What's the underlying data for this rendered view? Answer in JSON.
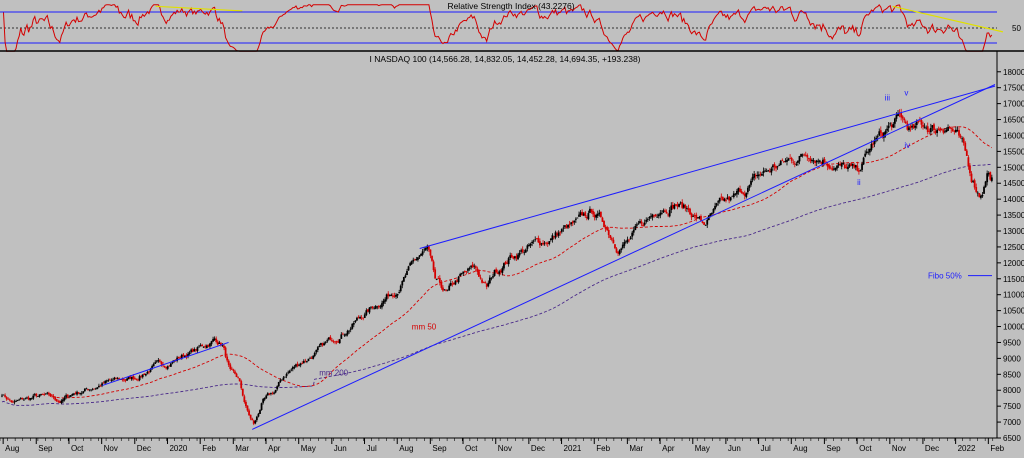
{
  "chart_data": [
    {
      "type": "line",
      "title": "Relative Strength Index (43.2276)",
      "y_ticks": [
        50
      ],
      "reference_levels": [
        30,
        50,
        70
      ],
      "ylim": [
        20,
        80
      ],
      "colors": {
        "line": "#d40000",
        "levels": "#1c1cff",
        "trend": "#e0e000"
      },
      "trendlines": [
        {
          "x": [
            2019.97,
            2020.19
          ],
          "y": [
            78,
            72
          ]
        },
        {
          "x": [
            2021.84,
            2022.12
          ],
          "y": [
            78,
            45
          ]
        }
      ]
    },
    {
      "type": "candlestick",
      "title": "I NASDAQ 100 (14,566.28, 14,832.05, 14,452.28, 14,694.35, +193.238)",
      "x_tick_labels": [
        "Aug",
        "Sep",
        "Oct",
        "Nov",
        "Dec",
        "2020",
        "Feb",
        "Mar",
        "Apr",
        "May",
        "Jun",
        "Jul",
        "Aug",
        "Sep",
        "Oct",
        "Nov",
        "Dec",
        "2021",
        "Feb",
        "Mar",
        "Apr",
        "May",
        "Jun",
        "Jul",
        "Aug",
        "Sep",
        "Oct",
        "Nov",
        "Dec",
        "2022",
        "Feb"
      ],
      "x_tick_positions": [
        2019.583,
        2019.667,
        2019.75,
        2019.833,
        2019.917,
        2020.0,
        2020.083,
        2020.167,
        2020.25,
        2020.333,
        2020.417,
        2020.5,
        2020.583,
        2020.667,
        2020.75,
        2020.833,
        2020.917,
        2021.0,
        2021.083,
        2021.167,
        2021.25,
        2021.333,
        2021.417,
        2021.5,
        2021.583,
        2021.667,
        2021.75,
        2021.833,
        2021.917,
        2022.0,
        2022.083
      ],
      "y_ticks": [
        6500,
        7000,
        7500,
        8000,
        8500,
        9000,
        9500,
        10000,
        10500,
        11000,
        11500,
        12000,
        12500,
        13000,
        13500,
        14000,
        14500,
        15000,
        15500,
        16000,
        16500,
        17000,
        17500,
        18000
      ],
      "xlim": [
        2019.575,
        2022.105
      ],
      "ylim": [
        6500,
        18150
      ],
      "colors": {
        "up": "#000000",
        "down": "#d40000",
        "trend": "#1c1cff",
        "mm50": "#d40000",
        "mm200": "#4a2a8a"
      },
      "anchors": [
        [
          2019.58,
          7900
        ],
        [
          2019.61,
          7600
        ],
        [
          2019.64,
          7700
        ],
        [
          2019.67,
          7800
        ],
        [
          2019.7,
          7760
        ],
        [
          2019.73,
          7650
        ],
        [
          2019.76,
          7900
        ],
        [
          2019.8,
          8050
        ],
        [
          2019.84,
          8230
        ],
        [
          2019.88,
          8300
        ],
        [
          2019.92,
          8400
        ],
        [
          2019.96,
          8700
        ],
        [
          2020.0,
          8850
        ],
        [
          2020.04,
          9100
        ],
        [
          2020.08,
          9300
        ],
        [
          2020.12,
          9600
        ],
        [
          2020.14,
          9450
        ],
        [
          2020.16,
          8500
        ],
        [
          2020.18,
          8300
        ],
        [
          2020.2,
          7400
        ],
        [
          2020.21,
          7100
        ],
        [
          2020.22,
          6900
        ],
        [
          2020.24,
          7600
        ],
        [
          2020.27,
          7900
        ],
        [
          2020.3,
          8500
        ],
        [
          2020.34,
          8900
        ],
        [
          2020.38,
          9200
        ],
        [
          2020.42,
          9600
        ],
        [
          2020.46,
          10000
        ],
        [
          2020.5,
          10400
        ],
        [
          2020.54,
          10800
        ],
        [
          2020.58,
          11200
        ],
        [
          2020.64,
          12200
        ],
        [
          2020.66,
          12400
        ],
        [
          2020.68,
          11300
        ],
        [
          2020.71,
          11000
        ],
        [
          2020.74,
          11500
        ],
        [
          2020.78,
          11800
        ],
        [
          2020.81,
          11200
        ],
        [
          2020.83,
          11700
        ],
        [
          2020.87,
          12200
        ],
        [
          2020.92,
          12500
        ],
        [
          2020.96,
          12700
        ],
        [
          2021.0,
          13000
        ],
        [
          2021.04,
          13200
        ],
        [
          2021.08,
          13600
        ],
        [
          2021.11,
          13200
        ],
        [
          2021.14,
          12600
        ],
        [
          2021.17,
          12700
        ],
        [
          2021.21,
          13200
        ],
        [
          2021.25,
          13800
        ],
        [
          2021.29,
          13900
        ],
        [
          2021.33,
          13600
        ],
        [
          2021.36,
          13200
        ],
        [
          2021.4,
          13700
        ],
        [
          2021.44,
          14000
        ],
        [
          2021.5,
          14700
        ],
        [
          2021.54,
          15000
        ],
        [
          2021.58,
          15200
        ],
        [
          2021.63,
          15500
        ],
        [
          2021.67,
          15300
        ],
        [
          2021.71,
          15000
        ],
        [
          2021.75,
          14800
        ],
        [
          2021.79,
          15700
        ],
        [
          2021.83,
          16200
        ],
        [
          2021.86,
          16500
        ],
        [
          2021.89,
          16100
        ],
        [
          2021.92,
          16300
        ],
        [
          2021.95,
          16200
        ],
        [
          2021.98,
          16400
        ],
        [
          2022.0,
          16100
        ],
        [
          2022.02,
          15500
        ],
        [
          2022.04,
          14700
        ],
        [
          2022.06,
          14200
        ],
        [
          2022.07,
          14400
        ],
        [
          2022.08,
          14900
        ],
        [
          2022.09,
          14700
        ]
      ],
      "annotations": {
        "mm50_label": "mm 50",
        "mm200_label": "mm 200",
        "fibo_label": "Fibo 50%",
        "fibo_level": 11600,
        "wave_labels": [
          {
            "text": "iii",
            "x": 2021.82,
            "y": 17100
          },
          {
            "text": "v",
            "x": 2021.87,
            "y": 17250
          },
          {
            "text": "iv",
            "x": 2021.87,
            "y": 15600
          },
          {
            "text": "ii",
            "x": 2021.75,
            "y": 14450
          }
        ]
      },
      "trendlines": [
        {
          "x": [
            2020.215,
            2022.1
          ],
          "y": [
            6770,
            17600
          ]
        },
        {
          "x": [
            2020.64,
            2022.1
          ],
          "y": [
            12450,
            17550
          ]
        },
        {
          "x": [
            2019.835,
            2020.155
          ],
          "y": [
            8150,
            9500
          ]
        }
      ]
    }
  ]
}
